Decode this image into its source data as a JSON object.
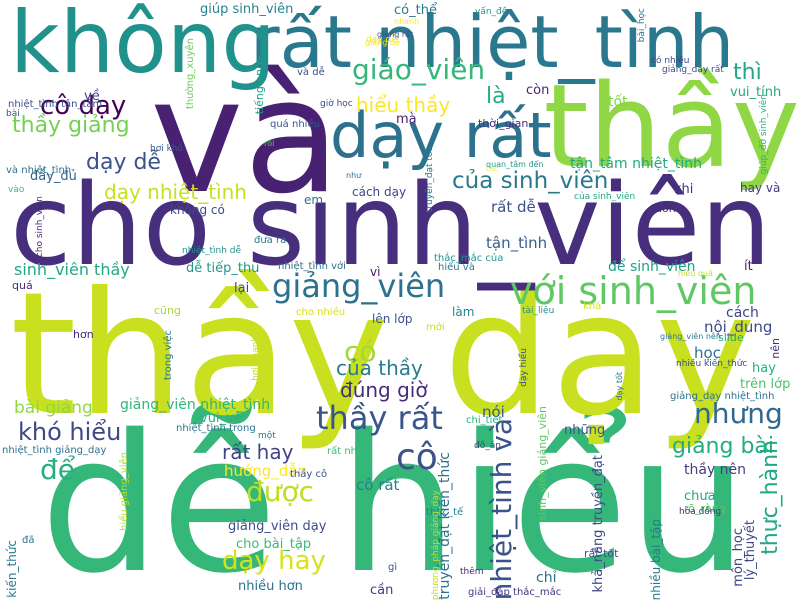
{
  "cloud": {
    "background": "#ffffff",
    "words": [
      {
        "text": "dễ hiểu",
        "color": "#35b779"
      },
      {
        "text": "thầy dạy",
        "color": "#c8e020"
      },
      {
        "text": "cho sinh_viên",
        "color": "#472f7d"
      },
      {
        "text": "và",
        "color": "#482173"
      },
      {
        "text": "thầy",
        "color": "#8fd744"
      },
      {
        "text": "rất nhiệt_tình",
        "color": "#2a788e"
      },
      {
        "text": "không",
        "color": "#21918c"
      },
      {
        "text": "dạy rất",
        "color": "#2c728e"
      },
      {
        "text": "với sinh_viên",
        "color": "#5ec962"
      },
      {
        "text": "giảng_viên",
        "color": "#2c728e"
      },
      {
        "text": "nhiệt_tình và",
        "color": "#3b528b"
      },
      {
        "text": "giáo_viên",
        "color": "#35b779"
      },
      {
        "text": "thầy rất",
        "color": "#39568c"
      },
      {
        "text": "nhưng",
        "color": "#31688e"
      },
      {
        "text": "cô dạy",
        "color": "#440154"
      },
      {
        "text": "của sinh_viên",
        "color": "#2a788e"
      },
      {
        "text": "thầy giảng",
        "color": "#75d054"
      },
      {
        "text": "khó hiểu",
        "color": "#3e4989"
      },
      {
        "text": "cô",
        "color": "#3b528b"
      },
      {
        "text": "được",
        "color": "#bddf26"
      },
      {
        "text": "dạy hay",
        "color": "#d8e219"
      },
      {
        "text": "giảng bài",
        "color": "#25ac82"
      },
      {
        "text": "thực_hành",
        "color": "#22a884"
      },
      {
        "text": "dạy dễ",
        "color": "#3b528b"
      },
      {
        "text": "dạy nhiệt_tình",
        "color": "#c8e020"
      },
      {
        "text": "hiểu thầy",
        "color": "#fde725"
      },
      {
        "text": "có",
        "color": "#a0da39"
      },
      {
        "text": "của thầy",
        "color": "#287c8e"
      },
      {
        "text": "đúng giờ",
        "color": "#472c7a"
      },
      {
        "text": "rất hay",
        "color": "#414487"
      },
      {
        "text": "là",
        "color": "#25ac82"
      },
      {
        "text": "thì",
        "color": "#22a884"
      },
      {
        "text": "sinh_viên thầy",
        "color": "#22a884"
      },
      {
        "text": "bài giảng",
        "color": "#8fd744"
      },
      {
        "text": "để",
        "color": "#27ad81"
      },
      {
        "text": "giúp sinh_viên",
        "color": "#26828e"
      },
      {
        "text": "về",
        "color": "#3e4989"
      },
      {
        "text": "tiếng anh",
        "color": "#1f9e89"
      },
      {
        "text": "hướng_dẫn",
        "color": "#fde725"
      },
      {
        "text": "giảng_viên nhiệt_tình",
        "color": "#31b57b"
      },
      {
        "text": "cô rất",
        "color": "#26828e"
      },
      {
        "text": "truyền_đạt kiến_thức",
        "color": "#2c728e"
      },
      {
        "text": "khả_năng truyền_đạt",
        "color": "#3e4a89"
      },
      {
        "text": "có_thể",
        "color": "#287d8e"
      },
      {
        "text": "tốt",
        "color": "#84d44b"
      },
      {
        "text": "vui_tính",
        "color": "#22a884"
      },
      {
        "text": "tận_tâm nhiệt_tình",
        "color": "#22a884"
      },
      {
        "text": "rất dễ",
        "color": "#3b528b"
      },
      {
        "text": "tận_tình",
        "color": "#355f8d"
      },
      {
        "text": "để sinh_viên",
        "color": "#1fa188"
      },
      {
        "text": "cách",
        "color": "#404688"
      },
      {
        "text": "nội_dung",
        "color": "#3e4989"
      },
      {
        "text": "học",
        "color": "#2c728e"
      },
      {
        "text": "hay",
        "color": "#27ad81"
      },
      {
        "text": "trên lớp",
        "color": "#4ac16d"
      },
      {
        "text": "nói",
        "color": "#375a8c"
      },
      {
        "text": "những",
        "color": "#3a548c"
      },
      {
        "text": "thầy nên",
        "color": "#433e85"
      },
      {
        "text": "chưa",
        "color": "#22a884"
      },
      {
        "text": "môn_học",
        "color": "#3f4788"
      },
      {
        "text": "lý_thuyết",
        "color": "#3e4989"
      },
      {
        "text": "nhiều bài_tập",
        "color": "#2a788e"
      },
      {
        "text": "cho bài_tập",
        "color": "#3aba76"
      },
      {
        "text": "giảng_viên dạy",
        "color": "#3d4d8a"
      },
      {
        "text": "nhiều hơn",
        "color": "#2d708e"
      },
      {
        "text": "cần",
        "color": "#443a83"
      },
      {
        "text": "chỉ",
        "color": "#2d708e"
      },
      {
        "text": "kiến_thức",
        "color": "#2a788e"
      },
      {
        "text": "hơn",
        "color": "#472a7a"
      },
      {
        "text": "quá",
        "color": "#472c7a"
      },
      {
        "text": "lại",
        "color": "#3f4788"
      },
      {
        "text": "vì",
        "color": "#481769"
      },
      {
        "text": "em",
        "color": "#2c728e"
      },
      {
        "text": "cách dạy",
        "color": "#404688"
      },
      {
        "text": "không có",
        "color": "#3e4989"
      },
      {
        "text": "hay và",
        "color": "#453882"
      },
      {
        "text": "khi",
        "color": "#46337f"
      },
      {
        "text": "luôn",
        "color": "#472f7d"
      },
      {
        "text": "mà",
        "color": "#481f70"
      },
      {
        "text": "còn",
        "color": "#481f70"
      },
      {
        "text": "ít",
        "color": "#481f70"
      },
      {
        "text": "nên",
        "color": "#472c7a"
      },
      {
        "text": "slide",
        "color": "#22a884"
      },
      {
        "text": "đầy_đủ",
        "color": "#34618d"
      },
      {
        "text": "dễ tiếp_thu",
        "color": "#1f988b"
      },
      {
        "text": "vui_vẻ",
        "color": "#2ab07f"
      },
      {
        "text": "lên lớp",
        "color": "#3b528b"
      },
      {
        "text": "làm",
        "color": "#26828e"
      },
      {
        "text": "thời_gian",
        "color": "#462f7e"
      },
      {
        "text": "và dễ",
        "color": "#3d4e8a"
      },
      {
        "text": "nhiệt_tình tận_tâm",
        "color": "#3b528b"
      },
      {
        "text": "nhiệt_tình trong",
        "color": "#2b758e"
      },
      {
        "text": "nhiệt_tình giảng_dạy",
        "color": "#2d708e"
      },
      {
        "text": "thường_xuyên",
        "color": "#6ccd5a"
      },
      {
        "text": "quá nhiều",
        "color": "#3b528b"
      },
      {
        "text": "giờ học",
        "color": "#3e4989"
      },
      {
        "text": "rồi",
        "color": "#5ec962"
      },
      {
        "text": "hơi khó",
        "color": "#38598c"
      },
      {
        "text": "như",
        "color": "#2c728e"
      },
      {
        "text": "đưa ra",
        "color": "#287c8e"
      },
      {
        "text": "nhiệt_tình dễ",
        "color": "#20928c"
      },
      {
        "text": "nhiệt_tình với",
        "color": "#2d708e"
      },
      {
        "text": "hiểu và",
        "color": "#29798e"
      },
      {
        "text": "thắc_mắc của",
        "color": "#1f948c"
      },
      {
        "text": "cũng",
        "color": "#a5db36"
      },
      {
        "text": "trong việc",
        "color": "#2a788e"
      },
      {
        "text": "cho nhiều",
        "color": "#d8e219"
      },
      {
        "text": "mới",
        "color": "#c2df23"
      },
      {
        "text": "tài_liệu",
        "color": "#21918c"
      },
      {
        "text": "khá",
        "color": "#d5e21a"
      },
      {
        "text": "chi_tiết",
        "color": "#2ab07f"
      },
      {
        "text": "rất nhiều",
        "color": "#3aba76"
      },
      {
        "text": "hơi nhanh",
        "color": "#bddf26"
      },
      {
        "text": "một",
        "color": "#2a788e"
      },
      {
        "text": "thầy cô",
        "color": "#3b528b"
      },
      {
        "text": "thực_tế",
        "color": "#277f8e"
      },
      {
        "text": "đồ_án",
        "color": "#404588"
      },
      {
        "text": "rõ_ràng",
        "color": "#52c569"
      },
      {
        "text": "hòa đồng",
        "color": "#46307e"
      },
      {
        "text": "rất tốt",
        "color": "#3c4f8a"
      },
      {
        "text": "gì",
        "color": "#3a548c"
      },
      {
        "text": "giải_đáp thắc_mắc",
        "color": "#463480"
      },
      {
        "text": "thêm",
        "color": "#482576"
      },
      {
        "text": "phương_pháp giảng_dạy",
        "color": "#c2df23"
      },
      {
        "text": "hiểu giảng_viên",
        "color": "#b5de2b"
      },
      {
        "text": "sinh_viên giảng_viên",
        "color": "#5ec962"
      },
      {
        "text": "dạy dễ",
        "color": "#fde725"
      },
      {
        "text": "nhanh",
        "color": "#fde725"
      },
      {
        "text": "vấn_đề",
        "color": "#1f9a8a"
      },
      {
        "text": "giảng rất",
        "color": "#3b528b"
      },
      {
        "text": "giảng dễ",
        "color": "#f1e51d"
      },
      {
        "text": "bài_học",
        "color": "#2c728e"
      },
      {
        "text": "có nhiều",
        "color": "#3e4989"
      },
      {
        "text": "giảng_dạy rất",
        "color": "#3e4989"
      },
      {
        "text": "giúp_đỡ sinh_viên",
        "color": "#2ab07f"
      },
      {
        "text": "quan_tâm đến",
        "color": "#1f988b"
      },
      {
        "text": "các",
        "color": "#fde725"
      },
      {
        "text": "truyền_đạt tốt",
        "color": "#2a788e"
      },
      {
        "text": "bài",
        "color": "#3b528b"
      },
      {
        "text": "vào",
        "color": "#3aba76"
      },
      {
        "text": "và nhiệt_tình",
        "color": "#2c728e"
      },
      {
        "text": "giảng_dạy nhiệt_tình",
        "color": "#2c728e"
      },
      {
        "text": "cho sinh_viên",
        "color": "#482475"
      },
      {
        "text": "của sinh_viên",
        "color": "#22a884"
      },
      {
        "text": "nhiều kiến_thức",
        "color": "#3d4d8a"
      },
      {
        "text": "dạy tốt",
        "color": "#2c728e"
      },
      {
        "text": "dạy hiểu",
        "color": "#3b528b"
      },
      {
        "text": "hiểu quá",
        "color": "#c2df23"
      },
      {
        "text": "giảng_viên nên",
        "color": "#2a788e"
      },
      {
        "text": "đã",
        "color": "#2c728e"
      }
    ]
  }
}
